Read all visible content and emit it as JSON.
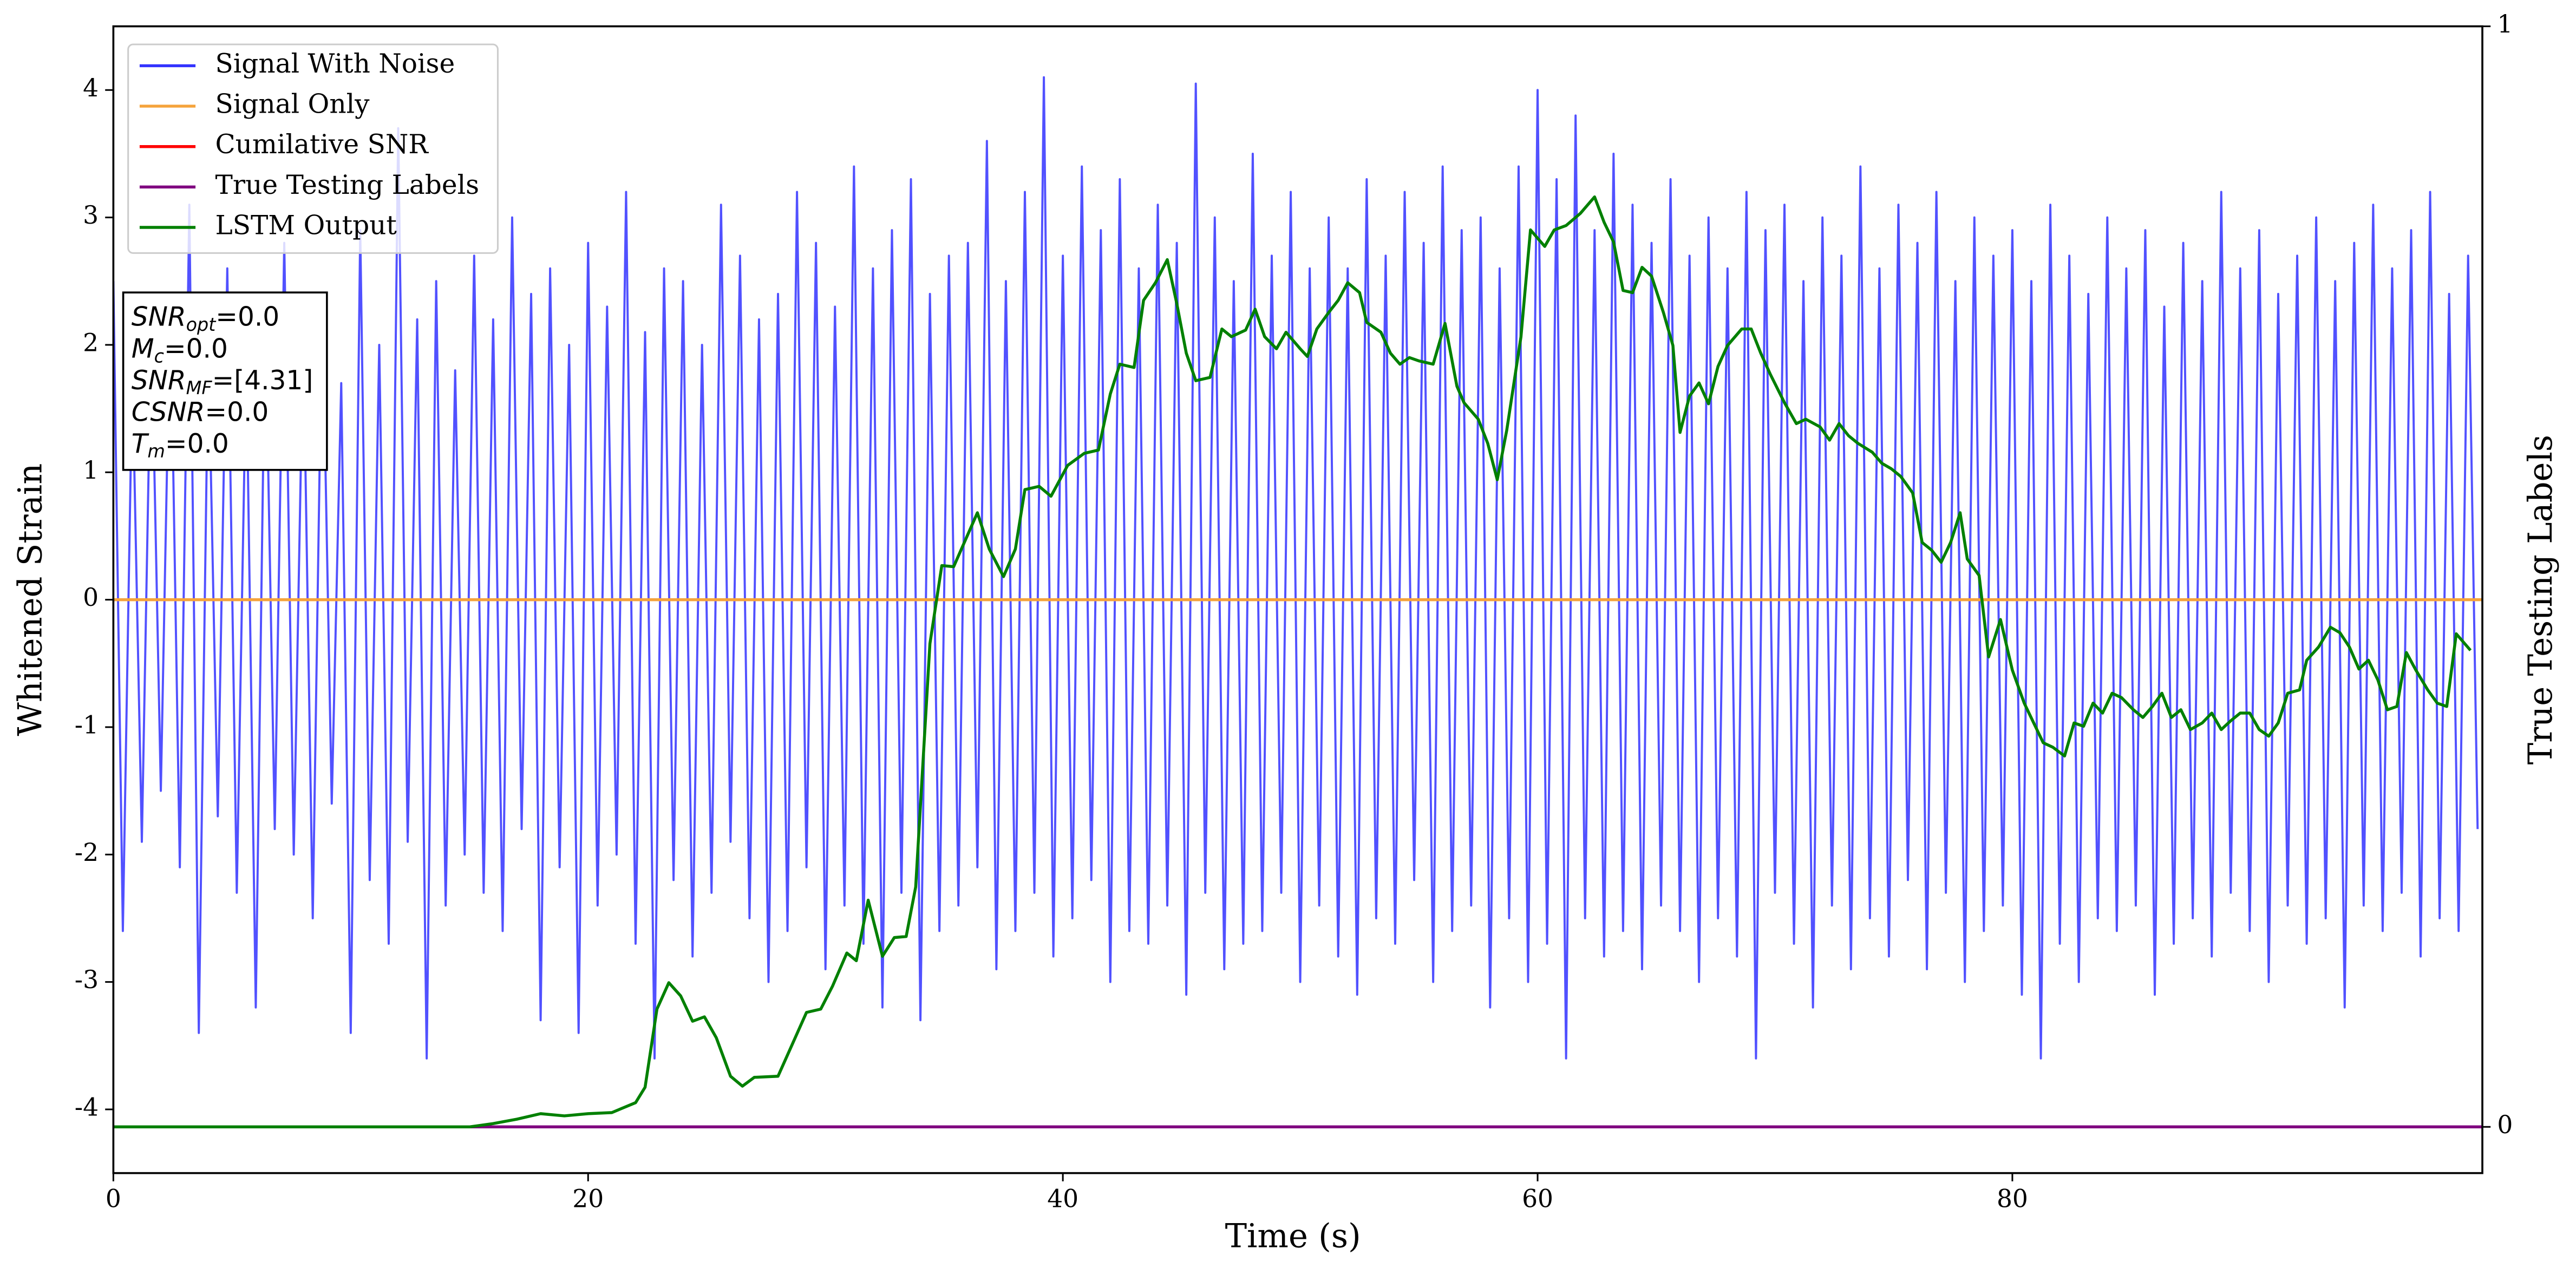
{
  "chart_data": {
    "type": "line",
    "xlabel": "Time (s)",
    "ylabel": "Whitened Strain",
    "y2label": "True Testing Labels",
    "xlim": [
      0,
      99.8
    ],
    "xticks": [
      0,
      20,
      40,
      60,
      80
    ],
    "ylim": [
      -4.5,
      4.5
    ],
    "yticks": [
      -4,
      -3,
      -2,
      -1,
      0,
      1,
      2,
      3,
      4
    ],
    "y2lim": [
      -0.042,
      1.0
    ],
    "y2ticks": [
      0,
      1
    ],
    "grid": false,
    "legend": "upper left",
    "annotation_box": [
      {
        "symbol": "SNR",
        "subscript": "opt",
        "text": "=0.0"
      },
      {
        "symbol": "M",
        "subscript": "c",
        "text": "=0.0"
      },
      {
        "symbol": "SNR",
        "subscript": "MF",
        "text": "=[4.31]"
      },
      {
        "symbol": "CSNR",
        "text": "=0.0"
      },
      {
        "symbol": "T",
        "subscript": "m",
        "text": "=0.0"
      }
    ],
    "series": [
      {
        "name": "Signal With Noise",
        "color": "#3333ff",
        "axis": "y",
        "x": [
          0,
          0.4,
          0.8,
          1.2,
          1.6,
          2,
          2.4,
          2.8,
          3.2,
          3.6,
          4,
          4.4,
          4.8,
          5.2,
          5.6,
          6,
          6.4,
          6.8,
          7.2,
          7.6,
          8,
          8.4,
          8.8,
          9.2,
          9.6,
          10,
          10.4,
          10.8,
          11.2,
          11.6,
          12,
          12.4,
          12.8,
          13.2,
          13.6,
          14,
          14.4,
          14.8,
          15.2,
          15.6,
          16,
          16.4,
          16.8,
          17.2,
          17.6,
          18,
          18.4,
          18.8,
          19.2,
          19.6,
          20,
          20.4,
          20.8,
          21.2,
          21.6,
          22,
          22.4,
          22.8,
          23.2,
          23.6,
          24,
          24.4,
          24.8,
          25.2,
          25.6,
          26,
          26.4,
          26.8,
          27.2,
          27.6,
          28,
          28.4,
          28.8,
          29.2,
          29.6,
          30,
          30.4,
          30.8,
          31.2,
          31.6,
          32,
          32.4,
          32.8,
          33.2,
          33.6,
          34,
          34.4,
          34.8,
          35.2,
          35.6,
          36,
          36.4,
          36.8,
          37.2,
          37.6,
          38,
          38.4,
          38.8,
          39.2,
          39.6,
          40,
          40.4,
          40.8,
          41.2,
          41.6,
          42,
          42.4,
          42.8,
          43.2,
          43.6,
          44,
          44.4,
          44.8,
          45.2,
          45.6,
          46,
          46.4,
          46.8,
          47.2,
          47.6,
          48,
          48.4,
          48.8,
          49.2,
          49.6,
          50,
          50.4,
          50.8,
          51.2,
          51.6,
          52,
          52.4,
          52.8,
          53.2,
          53.6,
          54,
          54.4,
          54.8,
          55.2,
          55.6,
          56,
          56.4,
          56.8,
          57.2,
          57.6,
          58,
          58.4,
          58.8,
          59.2,
          59.6,
          60,
          60.4,
          60.8,
          61.2,
          61.6,
          62,
          62.4,
          62.8,
          63.2,
          63.6,
          64,
          64.4,
          64.8,
          65.2,
          65.6,
          66,
          66.4,
          66.8,
          67.2,
          67.6,
          68,
          68.4,
          68.8,
          69.2,
          69.6,
          70,
          70.4,
          70.8,
          71.2,
          71.6,
          72,
          72.4,
          72.8,
          73.2,
          73.6,
          74,
          74.4,
          74.8,
          75.2,
          75.6,
          76,
          76.4,
          76.8,
          77.2,
          77.6,
          78,
          78.4,
          78.8,
          79.2,
          79.6,
          80,
          80.4,
          80.8,
          81.2,
          81.6,
          82,
          82.4,
          82.8,
          83.2,
          83.6,
          84,
          84.4,
          84.8,
          85.2,
          85.6,
          86,
          86.4,
          86.8,
          87.2,
          87.6,
          88,
          88.4,
          88.8,
          89.2,
          89.6,
          90,
          90.4,
          90.8,
          91.2,
          91.6,
          92,
          92.4,
          92.8,
          93.2,
          93.6,
          94,
          94.4,
          94.8,
          95.2,
          95.6,
          96,
          96.4,
          96.8,
          97.2,
          97.6,
          98,
          98.4,
          98.8,
          99.2,
          99.6
        ],
        "values": [
          2.5,
          -2.6,
          1.8,
          -1.9,
          2.2,
          -1.5,
          2.4,
          -2.1,
          3.1,
          -3.4,
          2.0,
          -1.7,
          2.6,
          -2.3,
          1.9,
          -3.2,
          2.3,
          -1.8,
          2.8,
          -2.0,
          2.1,
          -2.5,
          2.4,
          -1.6,
          1.7,
          -3.4,
          2.9,
          -2.2,
          2.0,
          -2.7,
          3.7,
          -1.9,
          2.2,
          -3.6,
          2.5,
          -2.4,
          1.8,
          -2.0,
          2.7,
          -2.3,
          2.2,
          -2.6,
          3.0,
          -1.8,
          2.4,
          -3.3,
          2.6,
          -2.1,
          2.0,
          -3.4,
          2.8,
          -2.4,
          2.3,
          -2.0,
          3.2,
          -2.7,
          2.1,
          -3.6,
          2.6,
          -2.2,
          2.5,
          -2.8,
          2.0,
          -2.3,
          3.1,
          -1.9,
          2.7,
          -2.5,
          2.2,
          -3.0,
          2.4,
          -2.6,
          3.2,
          -2.1,
          2.8,
          -2.9,
          2.3,
          -2.4,
          3.4,
          -2.7,
          2.6,
          -3.2,
          2.9,
          -2.3,
          3.3,
          -3.3,
          2.4,
          -2.6,
          2.7,
          -2.4,
          2.8,
          -2.1,
          3.6,
          -2.9,
          2.5,
          -2.6,
          3.2,
          -2.3,
          4.1,
          -2.8,
          2.7,
          -2.5,
          3.4,
          -2.2,
          2.9,
          -3.0,
          3.3,
          -2.6,
          2.6,
          -2.7,
          3.1,
          -2.4,
          2.8,
          -3.1,
          4.05,
          -2.3,
          3.0,
          -2.9,
          2.5,
          -2.7,
          3.5,
          -2.6,
          2.7,
          -2.3,
          3.2,
          -3.0,
          2.6,
          -2.4,
          3.0,
          -2.8,
          2.6,
          -3.1,
          3.3,
          -2.5,
          2.7,
          -2.7,
          3.2,
          -2.2,
          2.8,
          -3.0,
          3.4,
          -2.6,
          2.9,
          -2.4,
          3.0,
          -3.2,
          2.6,
          -2.5,
          3.4,
          -3.0,
          4.0,
          -2.7,
          3.3,
          -3.6,
          3.8,
          -2.5,
          2.9,
          -2.8,
          3.5,
          -2.6,
          3.1,
          -2.9,
          2.8,
          -2.4,
          3.3,
          -2.6,
          2.7,
          -3.0,
          3.0,
          -2.5,
          2.6,
          -2.8,
          3.2,
          -3.6,
          2.9,
          -2.3,
          3.1,
          -2.7,
          2.5,
          -3.2,
          3.0,
          -2.4,
          2.7,
          -2.9,
          3.4,
          -2.5,
          2.6,
          -2.8,
          3.1,
          -2.2,
          2.8,
          -2.9,
          3.2,
          -2.3,
          2.5,
          -3.0,
          3.0,
          -2.6,
          2.7,
          -2.4,
          2.9,
          -3.1,
          2.5,
          -3.6,
          3.1,
          -2.7,
          2.7,
          -3.0,
          2.4,
          -2.5,
          3.0,
          -2.6,
          2.6,
          -2.4,
          2.9,
          -3.1,
          2.3,
          -2.7,
          2.8,
          -2.5,
          2.5,
          -2.8,
          3.2,
          -2.3,
          2.6,
          -2.6,
          2.9,
          -3.0,
          2.4,
          -2.4,
          2.7,
          -2.7,
          3.0,
          -2.5,
          2.5,
          -3.2,
          2.8,
          -2.4,
          3.1,
          -2.6,
          2.6,
          -2.3,
          2.9,
          -2.8,
          3.2,
          -2.5,
          2.4,
          -2.6,
          2.7,
          -1.8
        ]
      },
      {
        "name": "Signal Only",
        "color": "#f5a33b",
        "axis": "y",
        "x": [
          0,
          99.8
        ],
        "values": [
          0,
          0
        ]
      },
      {
        "name": "Cumilative SNR",
        "color": "#ff0000",
        "axis": "y2",
        "x": [
          0,
          99.8
        ],
        "values": [
          0,
          0
        ]
      },
      {
        "name": "True Testing Labels",
        "color": "#800080",
        "axis": "y2",
        "x": [
          0,
          99.8
        ],
        "values": [
          0,
          0
        ]
      },
      {
        "name": "LSTM Output",
        "color": "#008000",
        "axis": "y2",
        "x": [
          0,
          15,
          16,
          17,
          18,
          19,
          20,
          21,
          22,
          22.4,
          22.9,
          23.4,
          23.9,
          24.4,
          24.9,
          25.4,
          26.0,
          26.5,
          27.0,
          28.0,
          28.6,
          29.2,
          29.8,
          30.3,
          30.9,
          31.3,
          31.8,
          32.4,
          32.9,
          33.4,
          33.8,
          34.4,
          34.9,
          35.4,
          36.4,
          36.9,
          37.5,
          38.0,
          38.4,
          39.0,
          39.5,
          40.2,
          40.9,
          41.5,
          42.0,
          42.4,
          43.0,
          43.4,
          43.9,
          44.4,
          44.8,
          45.2,
          45.6,
          46.2,
          46.7,
          47.1,
          47.7,
          48.1,
          48.5,
          49.0,
          49.4,
          50.0,
          50.3,
          50.7,
          51.2,
          51.6,
          52.0,
          52.5,
          52.8,
          53.4,
          53.8,
          54.2,
          54.6,
          55.0,
          55.6,
          56.1,
          56.6,
          56.9,
          57.5,
          57.9,
          58.3,
          58.7,
          59.3,
          59.7,
          60.3,
          60.7,
          61.2,
          61.8,
          62.4,
          62.8,
          63.2,
          63.6,
          64.0,
          64.4,
          64.8,
          65.3,
          65.7,
          66.0,
          66.4,
          66.8,
          67.2,
          67.6,
          68.0,
          68.6,
          69.0,
          69.4,
          69.8,
          70.4,
          70.9,
          71.3,
          71.9,
          72.3,
          72.7,
          73.1,
          73.5,
          74.1,
          74.5,
          74.9,
          75.3,
          75.8,
          76.2,
          76.6,
          77.0,
          77.4,
          77.8,
          78.1,
          78.6,
          79.0,
          79.5,
          80.0,
          80.5,
          80.9,
          81.3,
          81.7,
          82.2,
          82.6,
          83.0,
          83.4,
          83.8,
          84.2,
          84.6,
          85.1,
          85.5,
          85.9,
          86.3,
          86.7,
          87.1,
          87.5,
          88.0,
          88.4,
          88.8,
          89.2,
          89.6,
          90.0,
          90.4,
          90.8,
          91.2,
          91.6,
          92.1,
          92.4,
          92.9,
          93.4,
          93.8,
          94.2,
          94.6,
          95.0,
          95.4,
          95.8,
          96.2,
          96.6,
          97.0,
          97.5,
          97.9,
          98.3,
          98.7,
          99.3
        ],
        "values": [
          0,
          0,
          0.003,
          0.007,
          0.012,
          0.01,
          0.012,
          0.013,
          0.022,
          0.036,
          0.107,
          0.131,
          0.119,
          0.096,
          0.1,
          0.081,
          0.046,
          0.037,
          0.045,
          0.046,
          0.075,
          0.104,
          0.107,
          0.128,
          0.158,
          0.151,
          0.206,
          0.155,
          0.172,
          0.173,
          0.218,
          0.439,
          0.51,
          0.509,
          0.558,
          0.525,
          0.5,
          0.525,
          0.579,
          0.582,
          0.573,
          0.601,
          0.612,
          0.615,
          0.666,
          0.693,
          0.69,
          0.751,
          0.767,
          0.788,
          0.748,
          0.703,
          0.678,
          0.681,
          0.725,
          0.718,
          0.724,
          0.743,
          0.718,
          0.707,
          0.722,
          0.707,
          0.7,
          0.725,
          0.74,
          0.751,
          0.767,
          0.758,
          0.731,
          0.722,
          0.703,
          0.693,
          0.699,
          0.696,
          0.693,
          0.73,
          0.673,
          0.658,
          0.643,
          0.621,
          0.588,
          0.633,
          0.718,
          0.815,
          0.8,
          0.815,
          0.819,
          0.83,
          0.845,
          0.822,
          0.804,
          0.76,
          0.758,
          0.781,
          0.773,
          0.74,
          0.71,
          0.631,
          0.664,
          0.676,
          0.657,
          0.691,
          0.71,
          0.725,
          0.725,
          0.703,
          0.684,
          0.658,
          0.639,
          0.643,
          0.636,
          0.624,
          0.639,
          0.628,
          0.621,
          0.613,
          0.603,
          0.598,
          0.591,
          0.576,
          0.531,
          0.524,
          0.513,
          0.531,
          0.558,
          0.516,
          0.501,
          0.427,
          0.461,
          0.415,
          0.385,
          0.367,
          0.349,
          0.345,
          0.337,
          0.367,
          0.364,
          0.385,
          0.376,
          0.394,
          0.39,
          0.379,
          0.372,
          0.382,
          0.394,
          0.372,
          0.379,
          0.361,
          0.367,
          0.376,
          0.361,
          0.369,
          0.376,
          0.376,
          0.361,
          0.355,
          0.367,
          0.394,
          0.397,
          0.424,
          0.436,
          0.454,
          0.449,
          0.436,
          0.416,
          0.424,
          0.406,
          0.379,
          0.382,
          0.431,
          0.415,
          0.397,
          0.385,
          0.382,
          0.448,
          0.433
        ]
      }
    ]
  }
}
